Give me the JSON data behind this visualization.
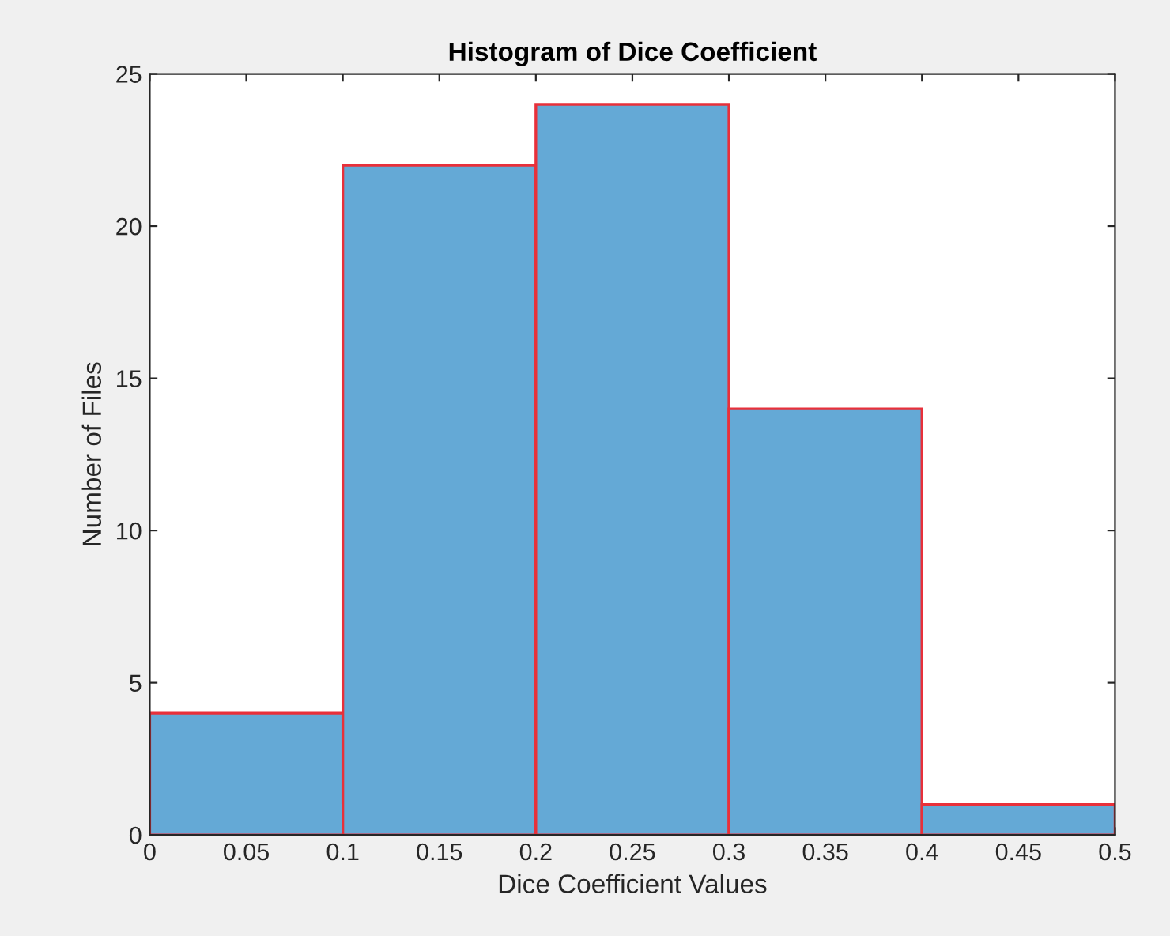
{
  "chart_data": {
    "type": "histogram",
    "title": "Histogram of Dice Coefficient",
    "xlabel": "Dice Coefficient Values",
    "ylabel": "Number of Files",
    "bins": [
      0,
      0.1,
      0.2,
      0.3,
      0.4,
      0.5
    ],
    "values": [
      4,
      22,
      24,
      14,
      1
    ],
    "color": "#64a9d6",
    "xlim": [
      0,
      0.5
    ],
    "xticks": [
      0,
      0.05,
      0.1,
      0.15,
      0.2,
      0.25,
      0.3,
      0.35,
      0.4,
      0.45,
      0.5
    ],
    "ylim": [
      0,
      25
    ],
    "yticks": [
      0,
      5,
      10,
      15,
      20,
      25
    ],
    "grid": false,
    "legend": false
  }
}
